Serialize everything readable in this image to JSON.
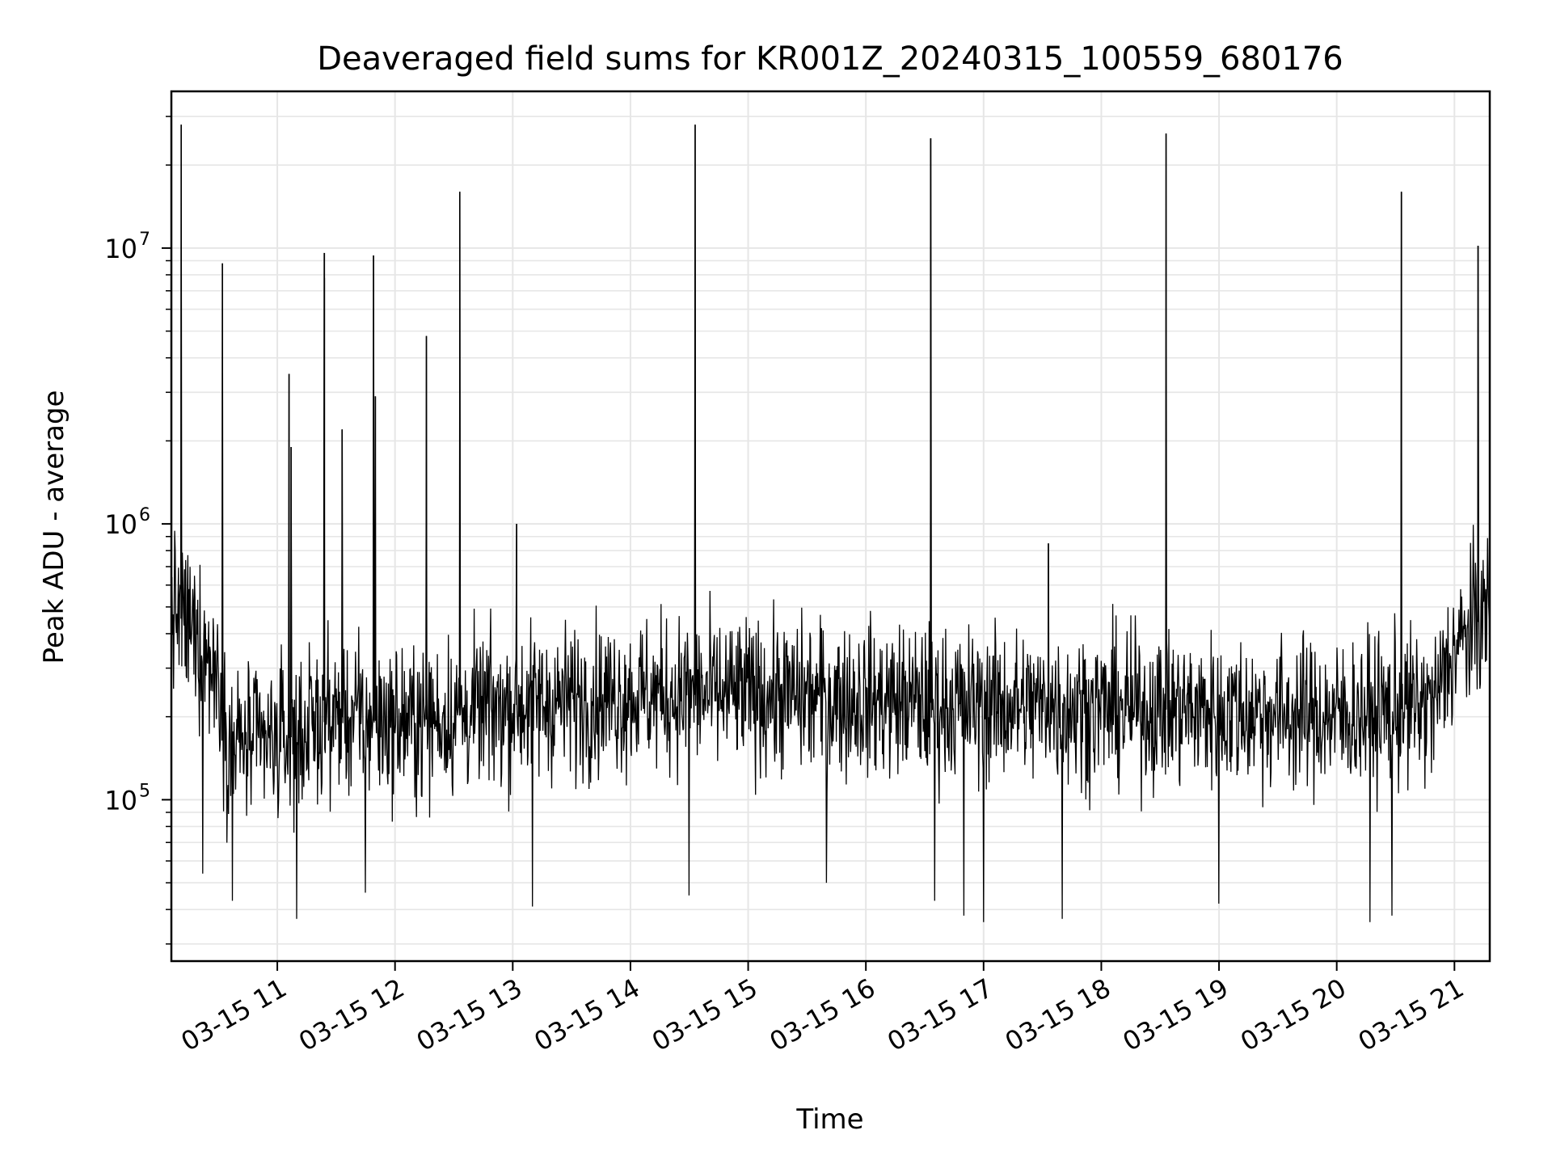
{
  "chart_data": {
    "type": "line",
    "title": "Deaveraged field sums for KR001Z_20240315_100559_680176",
    "xlabel": "Time",
    "ylabel": "Peak ADU - average",
    "yscale": "log",
    "ylim": [
      26000,
      37000000
    ],
    "xlim": [
      "03-15 10:06",
      "03-15 21:18"
    ],
    "grid": true,
    "line_color": "#000000",
    "grid_color": "#e6e6e6",
    "x_ticks": [
      {
        "value": "03-15 11:00",
        "label": "03-15 11"
      },
      {
        "value": "03-15 12:00",
        "label": "03-15 12"
      },
      {
        "value": "03-15 13:00",
        "label": "03-15 13"
      },
      {
        "value": "03-15 14:00",
        "label": "03-15 14"
      },
      {
        "value": "03-15 15:00",
        "label": "03-15 15"
      },
      {
        "value": "03-15 16:00",
        "label": "03-15 16"
      },
      {
        "value": "03-15 17:00",
        "label": "03-15 17"
      },
      {
        "value": "03-15 18:00",
        "label": "03-15 18"
      },
      {
        "value": "03-15 19:00",
        "label": "03-15 19"
      },
      {
        "value": "03-15 20:00",
        "label": "03-15 20"
      },
      {
        "value": "03-15 21:00",
        "label": "03-15 21"
      }
    ],
    "y_ticks": [
      {
        "value": 100000,
        "base": "10",
        "exp": "5"
      },
      {
        "value": 1000000,
        "base": "10",
        "exp": "6"
      },
      {
        "value": 10000000,
        "base": "10",
        "exp": "7"
      }
    ],
    "baseline_segments": [
      {
        "x": "03-15 10:06",
        "y": 500000
      },
      {
        "x": "03-15 10:20",
        "y": 380000
      },
      {
        "x": "03-15 10:30",
        "y": 280000
      },
      {
        "x": "03-15 10:35",
        "y": 160000
      },
      {
        "x": "03-15 11:00",
        "y": 160000
      },
      {
        "x": "03-15 11:30",
        "y": 200000
      },
      {
        "x": "03-15 12:00",
        "y": 190000
      },
      {
        "x": "03-15 12:30",
        "y": 200000
      },
      {
        "x": "03-15 13:00",
        "y": 220000
      },
      {
        "x": "03-15 14:00",
        "y": 240000
      },
      {
        "x": "03-15 15:00",
        "y": 240000
      },
      {
        "x": "03-15 16:00",
        "y": 230000
      },
      {
        "x": "03-15 17:00",
        "y": 220000
      },
      {
        "x": "03-15 18:00",
        "y": 215000
      },
      {
        "x": "03-15 19:00",
        "y": 210000
      },
      {
        "x": "03-15 20:00",
        "y": 200000
      },
      {
        "x": "03-15 20:50",
        "y": 220000
      },
      {
        "x": "03-15 20:58",
        "y": 330000
      },
      {
        "x": "03-15 21:18",
        "y": 500000
      }
    ],
    "spikes": [
      {
        "x": "03-15 10:11",
        "y": 28000000
      },
      {
        "x": "03-15 10:32",
        "y": 8800000
      },
      {
        "x": "03-15 11:06",
        "y": 3500000
      },
      {
        "x": "03-15 11:07",
        "y": 1900000
      },
      {
        "x": "03-15 11:24",
        "y": 9600000
      },
      {
        "x": "03-15 11:24",
        "y": 7800000
      },
      {
        "x": "03-15 11:33",
        "y": 2200000
      },
      {
        "x": "03-15 11:49",
        "y": 9400000
      },
      {
        "x": "03-15 11:50",
        "y": 2900000
      },
      {
        "x": "03-15 12:16",
        "y": 4800000
      },
      {
        "x": "03-15 12:33",
        "y": 16000000
      },
      {
        "x": "03-15 13:02",
        "y": 1000000
      },
      {
        "x": "03-15 14:33",
        "y": 28000000
      },
      {
        "x": "03-15 16:33",
        "y": 25000000
      },
      {
        "x": "03-15 17:33",
        "y": 850000
      },
      {
        "x": "03-15 18:33",
        "y": 26000000
      },
      {
        "x": "03-15 20:33",
        "y": 16000000
      },
      {
        "x": "03-15 21:12",
        "y": 10200000
      }
    ],
    "dips": [
      {
        "x": "03-15 10:37",
        "y": 43000
      },
      {
        "x": "03-15 10:22",
        "y": 54000
      },
      {
        "x": "03-15 11:10",
        "y": 37000
      },
      {
        "x": "03-15 11:45",
        "y": 46000
      },
      {
        "x": "03-15 13:10",
        "y": 41000
      },
      {
        "x": "03-15 14:30",
        "y": 45000
      },
      {
        "x": "03-15 15:40",
        "y": 50000
      },
      {
        "x": "03-15 16:35",
        "y": 43000
      },
      {
        "x": "03-15 16:50",
        "y": 38000
      },
      {
        "x": "03-15 17:00",
        "y": 36000
      },
      {
        "x": "03-15 17:40",
        "y": 37000
      },
      {
        "x": "03-15 19:00",
        "y": 42000
      },
      {
        "x": "03-15 20:17",
        "y": 36000
      },
      {
        "x": "03-15 20:28",
        "y": 38000
      }
    ],
    "noise_amplitude_decades": 0.5,
    "sample_count": 2400
  }
}
